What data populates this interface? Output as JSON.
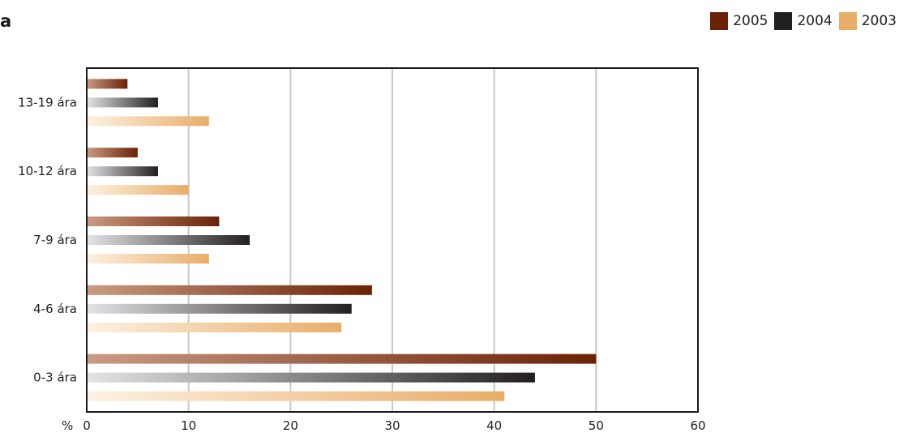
{
  "title": "a",
  "chart_data": {
    "type": "bar",
    "orientation": "horizontal",
    "categories": [
      "13-19 ára",
      "10-12 ára",
      "7-9 ára",
      "4-6 ára",
      "0-3 ára"
    ],
    "series": [
      {
        "name": "2005",
        "color": "#6b2106",
        "values": [
          4,
          5,
          13,
          28,
          50
        ]
      },
      {
        "name": "2004",
        "color": "#231f20",
        "values": [
          7,
          7,
          16,
          26,
          44
        ]
      },
      {
        "name": "2003",
        "color": "#e8ad68",
        "values": [
          12,
          10,
          12,
          25,
          41
        ]
      }
    ],
    "xlim": [
      0,
      60
    ],
    "xticks": [
      0,
      10,
      20,
      30,
      40,
      50,
      60
    ],
    "xlabel": "%",
    "grid": "vertical",
    "legend_position": "top-right"
  }
}
